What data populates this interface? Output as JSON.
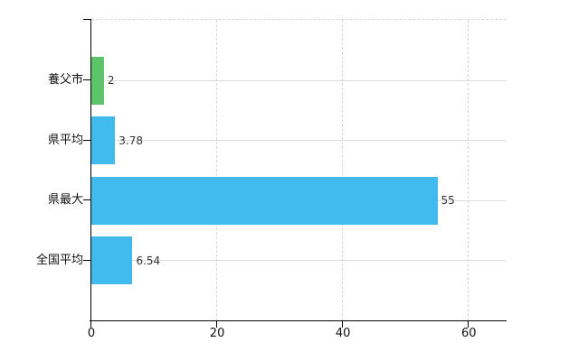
{
  "chart_data": {
    "type": "bar",
    "orientation": "horizontal",
    "title": "",
    "xlabel": "",
    "ylabel": "",
    "categories": [
      "養父市",
      "県平均",
      "県最大",
      "全国平均"
    ],
    "values": [
      2,
      3.78,
      55,
      6.54
    ],
    "value_labels": [
      "2",
      "3.78",
      "55",
      "6.54"
    ],
    "bar_colors": [
      "#5ec46a",
      "#41baee",
      "#41baee",
      "#41baee"
    ],
    "x_ticks": [
      0,
      20,
      40,
      60
    ],
    "x_tick_labels": [
      "0",
      "20",
      "40",
      "60"
    ],
    "xlim": [
      0,
      66
    ],
    "grid": true,
    "legend": false,
    "plot_background": "#ffffff"
  },
  "colors": {
    "highlight_green": "#5ec46a",
    "bar_blue": "#41baee",
    "axis": "#000000",
    "gridline": "#d9d9d9",
    "category_text": "#111111",
    "value_text": "#333333"
  }
}
